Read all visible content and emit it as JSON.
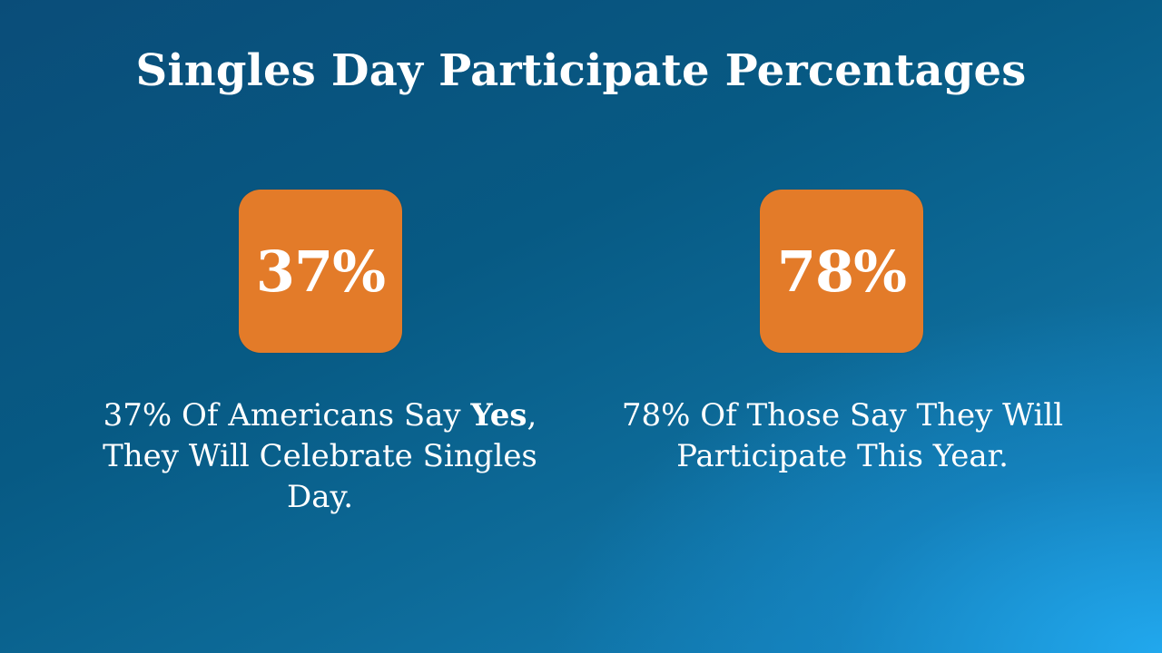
{
  "title": "Singles Day Participate Percentages",
  "colors": {
    "background_dark": "#0a4d79",
    "background_light": "#22aaf0",
    "stat_box": "#e37b29",
    "text": "#ffffff"
  },
  "stats": [
    {
      "value": "37%",
      "caption_before": "37% Of Americans Say ",
      "caption_bold": "Yes",
      "caption_after": ", They Will Celebrate Singles Day."
    },
    {
      "value": "78%",
      "caption": "78% Of Those Say They Will Participate This Year."
    }
  ]
}
